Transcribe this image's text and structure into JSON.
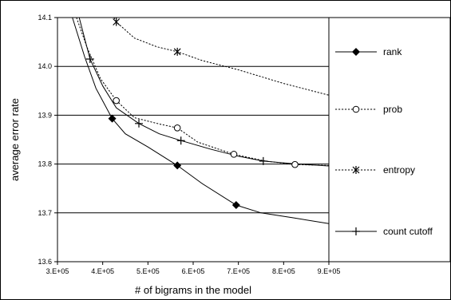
{
  "chart_data": {
    "type": "line",
    "xlabel": "# of bigrams in the model",
    "ylabel": "average error rate",
    "xlim": [
      300000,
      900000
    ],
    "ylim": [
      13.6,
      14.1
    ],
    "x_ticks": [
      "3.E+05",
      "4.E+05",
      "5.E+05",
      "6.E+05",
      "7.E+05",
      "8.E+05",
      "9.E+05"
    ],
    "y_ticks": [
      "13.6",
      "13.7",
      "13.8",
      "13.9",
      "14.0",
      "14.1"
    ],
    "grid": "horizontal",
    "legend_position": "right",
    "series": [
      {
        "name": "rank",
        "marker": "diamond",
        "line": "solid",
        "points": [
          [
            333000,
            14.1
          ],
          [
            360000,
            14.02
          ],
          [
            385000,
            13.955
          ],
          [
            421000,
            13.893
          ],
          [
            450000,
            13.862
          ],
          [
            500000,
            13.835
          ],
          [
            565000,
            13.797
          ],
          [
            620000,
            13.76
          ],
          [
            695000,
            13.716
          ],
          [
            750000,
            13.7
          ],
          [
            820000,
            13.69
          ],
          [
            900000,
            13.678
          ]
        ],
        "marker_points": [
          [
            421000,
            13.893
          ],
          [
            565000,
            13.797
          ],
          [
            695000,
            13.716
          ]
        ]
      },
      {
        "name": "prob",
        "marker": "circle",
        "line": "dotted",
        "points": [
          [
            342000,
            14.1
          ],
          [
            365000,
            14.04
          ],
          [
            395000,
            13.975
          ],
          [
            430000,
            13.93
          ],
          [
            470000,
            13.895
          ],
          [
            525000,
            13.882
          ],
          [
            565000,
            13.874
          ],
          [
            610000,
            13.845
          ],
          [
            690000,
            13.82
          ],
          [
            760000,
            13.806
          ],
          [
            825000,
            13.799
          ],
          [
            900000,
            13.797
          ]
        ],
        "marker_points": [
          [
            430000,
            13.93
          ],
          [
            565000,
            13.874
          ],
          [
            690000,
            13.82
          ],
          [
            825000,
            13.799
          ]
        ]
      },
      {
        "name": "entropy",
        "marker": "asterisk",
        "line": "dotted",
        "points": [
          [
            425000,
            14.1
          ],
          [
            430000,
            14.091
          ],
          [
            470000,
            14.058
          ],
          [
            520000,
            14.04
          ],
          [
            565000,
            14.03
          ],
          [
            620000,
            14.012
          ],
          [
            700000,
            13.993
          ],
          [
            800000,
            13.965
          ],
          [
            900000,
            13.941
          ]
        ],
        "marker_points": [
          [
            430000,
            14.091
          ],
          [
            565000,
            14.03
          ]
        ]
      },
      {
        "name": "count cutoff",
        "marker": "plus",
        "line": "solid",
        "points": [
          [
            348000,
            14.1
          ],
          [
            372000,
            14.015
          ],
          [
            400000,
            13.96
          ],
          [
            430000,
            13.915
          ],
          [
            480000,
            13.883
          ],
          [
            525000,
            13.862
          ],
          [
            573000,
            13.848
          ],
          [
            640000,
            13.83
          ],
          [
            700000,
            13.816
          ],
          [
            755000,
            13.806
          ],
          [
            830000,
            13.8
          ],
          [
            900000,
            13.796
          ]
        ],
        "marker_points": [
          [
            372000,
            14.015
          ],
          [
            480000,
            13.883
          ],
          [
            573000,
            13.848
          ],
          [
            755000,
            13.806
          ]
        ]
      }
    ]
  }
}
